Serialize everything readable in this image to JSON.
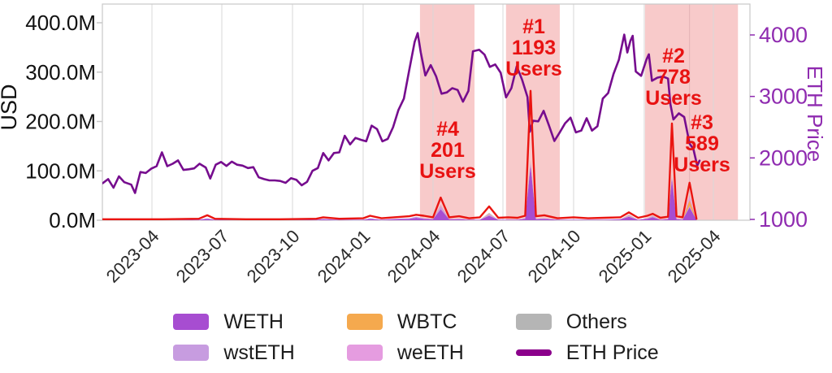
{
  "figure": {
    "left_axis": {
      "label": "USD",
      "tick_labels": [
        "0.0M",
        "100.0M",
        "200.0M",
        "300.0M",
        "400.0M"
      ],
      "tick_values": [
        0,
        100,
        200,
        300,
        400
      ]
    },
    "right_axis": {
      "label": "ETH Price",
      "tick_labels": [
        "1000",
        "2000",
        "3000",
        "4000"
      ],
      "tick_values": [
        1000,
        2000,
        3000,
        4000
      ]
    },
    "x_axis": {
      "tick_labels": [
        "2023-04",
        "2023-07",
        "2023-10",
        "2024-01",
        "2024-04",
        "2024-07",
        "2024-10",
        "2025-01",
        "2025-04"
      ]
    },
    "annotations": [
      {
        "rank": "#1",
        "users": "1193",
        "text": "#1\n1193\nUsers"
      },
      {
        "rank": "#2",
        "users": "778",
        "text": "#2\n778\nUsers"
      },
      {
        "rank": "#3",
        "users": "589",
        "text": "#3\n589\nUsers"
      },
      {
        "rank": "#4",
        "users": "201",
        "text": "#4\n201\nUsers"
      }
    ],
    "legend": [
      {
        "label": "WETH",
        "color": "#a74dd1",
        "type": "patch"
      },
      {
        "label": "wstETH",
        "color": "#c79ce0",
        "type": "patch"
      },
      {
        "label": "WBTC",
        "color": "#f5a94e",
        "type": "patch"
      },
      {
        "label": "weETH",
        "color": "#e59ce0",
        "type": "patch"
      },
      {
        "label": "Others",
        "color": "#b5b5b5",
        "type": "patch"
      },
      {
        "label": "ETH Price",
        "color": "#8b008b",
        "type": "line"
      }
    ],
    "colors": {
      "annotation_red": "#e81212",
      "region_pink": "#f8caca",
      "region_seam": "#e2b2b4",
      "total_line": "#ea1410",
      "eth_line": "#760d8e",
      "grid": "#d8d8d8",
      "axis_border": "#c9c9c9",
      "right_axis_text": "#8f2bb0",
      "left_axis_text": "#111111",
      "x_tick_text": "#2a2a2a"
    }
  },
  "chart_data": {
    "type": "area",
    "title": "",
    "left_axis": {
      "label": "USD",
      "units": "millions USD",
      "range": [
        0,
        438
      ]
    },
    "right_axis": {
      "label": "ETH Price",
      "range": [
        1000,
        4500
      ]
    },
    "x_ticks": [
      "2023-04",
      "2023-07",
      "2023-10",
      "2024-01",
      "2024-04",
      "2024-07",
      "2024-10",
      "2025-01",
      "2025-04"
    ],
    "grid": "vertical-only",
    "legend_position": "bottom-center",
    "highlight_regions": [
      {
        "rank": "#4",
        "users": 201,
        "start": "2024-03-15",
        "end": "2024-05-25"
      },
      {
        "rank": "#1",
        "users": 1193,
        "start": "2024-07-05",
        "end": "2024-09-13"
      },
      {
        "rank": "#2",
        "users": 778,
        "start": "2025-01-02",
        "end": "2025-03-01"
      },
      {
        "rank": "#3",
        "users": 589,
        "start": "2025-03-01",
        "end": "2025-05-03"
      }
    ],
    "eth_price": [
      [
        "2023-01-27",
        1590
      ],
      [
        "2023-02-03",
        1655
      ],
      [
        "2023-02-10",
        1515
      ],
      [
        "2023-02-17",
        1700
      ],
      [
        "2023-02-24",
        1605
      ],
      [
        "2023-03-05",
        1565
      ],
      [
        "2023-03-10",
        1430
      ],
      [
        "2023-03-17",
        1770
      ],
      [
        "2023-03-24",
        1755
      ],
      [
        "2023-03-31",
        1825
      ],
      [
        "2023-04-07",
        1865
      ],
      [
        "2023-04-14",
        2090
      ],
      [
        "2023-04-21",
        1865
      ],
      [
        "2023-04-28",
        1905
      ],
      [
        "2023-05-05",
        1960
      ],
      [
        "2023-05-12",
        1805
      ],
      [
        "2023-05-19",
        1815
      ],
      [
        "2023-05-26",
        1830
      ],
      [
        "2023-06-02",
        1905
      ],
      [
        "2023-06-10",
        1845
      ],
      [
        "2023-06-16",
        1665
      ],
      [
        "2023-06-23",
        1890
      ],
      [
        "2023-06-30",
        1935
      ],
      [
        "2023-07-07",
        1870
      ],
      [
        "2023-07-14",
        1940
      ],
      [
        "2023-07-21",
        1890
      ],
      [
        "2023-07-28",
        1875
      ],
      [
        "2023-08-04",
        1835
      ],
      [
        "2023-08-11",
        1850
      ],
      [
        "2023-08-18",
        1685
      ],
      [
        "2023-08-25",
        1655
      ],
      [
        "2023-09-01",
        1635
      ],
      [
        "2023-09-08",
        1635
      ],
      [
        "2023-09-15",
        1625
      ],
      [
        "2023-09-22",
        1595
      ],
      [
        "2023-09-29",
        1670
      ],
      [
        "2023-10-06",
        1645
      ],
      [
        "2023-10-13",
        1555
      ],
      [
        "2023-10-20",
        1610
      ],
      [
        "2023-10-27",
        1790
      ],
      [
        "2023-11-03",
        1835
      ],
      [
        "2023-11-10",
        2080
      ],
      [
        "2023-11-17",
        1960
      ],
      [
        "2023-11-24",
        2080
      ],
      [
        "2023-12-01",
        2090
      ],
      [
        "2023-12-08",
        2360
      ],
      [
        "2023-12-15",
        2220
      ],
      [
        "2023-12-22",
        2325
      ],
      [
        "2023-12-29",
        2295
      ],
      [
        "2024-01-05",
        2270
      ],
      [
        "2024-01-12",
        2525
      ],
      [
        "2024-01-19",
        2470
      ],
      [
        "2024-01-26",
        2270
      ],
      [
        "2024-02-02",
        2310
      ],
      [
        "2024-02-09",
        2500
      ],
      [
        "2024-02-16",
        2780
      ],
      [
        "2024-02-23",
        2965
      ],
      [
        "2024-03-01",
        3430
      ],
      [
        "2024-03-08",
        3885
      ],
      [
        "2024-03-12",
        4030
      ],
      [
        "2024-03-16",
        3720
      ],
      [
        "2024-03-22",
        3340
      ],
      [
        "2024-03-29",
        3510
      ],
      [
        "2024-04-05",
        3325
      ],
      [
        "2024-04-12",
        3045
      ],
      [
        "2024-04-19",
        3065
      ],
      [
        "2024-04-26",
        3135
      ],
      [
        "2024-05-03",
        3105
      ],
      [
        "2024-05-10",
        2915
      ],
      [
        "2024-05-17",
        3090
      ],
      [
        "2024-05-23",
        3735
      ],
      [
        "2024-05-31",
        3760
      ],
      [
        "2024-06-07",
        3680
      ],
      [
        "2024-06-14",
        3480
      ],
      [
        "2024-06-21",
        3520
      ],
      [
        "2024-06-28",
        3385
      ],
      [
        "2024-07-05",
        2985
      ],
      [
        "2024-07-12",
        3135
      ],
      [
        "2024-07-19",
        3490
      ],
      [
        "2024-07-26",
        3270
      ],
      [
        "2024-08-02",
        2990
      ],
      [
        "2024-08-05",
        2425
      ],
      [
        "2024-08-09",
        2605
      ],
      [
        "2024-08-16",
        2595
      ],
      [
        "2024-08-23",
        2765
      ],
      [
        "2024-08-30",
        2525
      ],
      [
        "2024-09-06",
        2275
      ],
      [
        "2024-09-13",
        2415
      ],
      [
        "2024-09-20",
        2565
      ],
      [
        "2024-09-27",
        2655
      ],
      [
        "2024-10-04",
        2415
      ],
      [
        "2024-10-11",
        2445
      ],
      [
        "2024-10-18",
        2645
      ],
      [
        "2024-10-25",
        2445
      ],
      [
        "2024-11-01",
        2515
      ],
      [
        "2024-11-08",
        2965
      ],
      [
        "2024-11-15",
        3055
      ],
      [
        "2024-11-22",
        3365
      ],
      [
        "2024-11-29",
        3595
      ],
      [
        "2024-12-06",
        4005
      ],
      [
        "2024-12-10",
        3715
      ],
      [
        "2024-12-14",
        3905
      ],
      [
        "2024-12-17",
        3985
      ],
      [
        "2024-12-21",
        3405
      ],
      [
        "2024-12-28",
        3335
      ],
      [
        "2025-01-04",
        3605
      ],
      [
        "2025-01-07",
        3685
      ],
      [
        "2025-01-11",
        3255
      ],
      [
        "2025-01-18",
        3305
      ],
      [
        "2025-01-25",
        3325
      ],
      [
        "2025-02-01",
        3290
      ],
      [
        "2025-02-04",
        2875
      ],
      [
        "2025-02-08",
        2625
      ],
      [
        "2025-02-15",
        2725
      ],
      [
        "2025-02-22",
        2665
      ],
      [
        "2025-03-01",
        2235
      ],
      [
        "2025-03-06",
        2145
      ],
      [
        "2025-03-11",
        1875
      ],
      [
        "2025-03-14",
        1955
      ]
    ],
    "volume_dates": [
      "2023-01-27",
      "2023-03-01",
      "2023-04-15",
      "2023-06-01",
      "2023-06-12",
      "2023-06-22",
      "2023-08-01",
      "2023-09-15",
      "2023-11-01",
      "2023-11-10",
      "2023-12-01",
      "2024-01-01",
      "2024-01-10",
      "2024-01-25",
      "2024-02-10",
      "2024-03-01",
      "2024-03-10",
      "2024-03-20",
      "2024-04-01",
      "2024-04-11",
      "2024-04-22",
      "2024-05-05",
      "2024-05-18",
      "2024-06-01",
      "2024-06-13",
      "2024-06-25",
      "2024-07-08",
      "2024-07-20",
      "2024-07-30",
      "2024-08-06",
      "2024-08-13",
      "2024-08-24",
      "2024-09-10",
      "2024-10-01",
      "2024-10-20",
      "2024-11-10",
      "2024-12-01",
      "2024-12-12",
      "2024-12-24",
      "2025-01-05",
      "2025-01-12",
      "2025-01-22",
      "2025-02-01",
      "2025-02-06",
      "2025-02-12",
      "2025-02-20",
      "2025-03-01",
      "2025-03-10"
    ],
    "volume_total_musd": [
      2,
      2,
      2,
      3,
      10,
      3,
      2,
      2,
      3,
      6,
      3,
      4,
      9,
      4,
      6,
      8,
      11,
      9,
      6,
      46,
      6,
      8,
      4,
      6,
      28,
      5,
      6,
      5,
      9,
      262,
      8,
      10,
      4,
      6,
      4,
      5,
      6,
      16,
      5,
      9,
      13,
      5,
      7,
      196,
      8,
      6,
      76,
      3
    ],
    "volume_series": [
      {
        "name": "WETH",
        "color": "#a74dd1",
        "values": [
          0,
          0,
          0,
          1,
          3,
          1,
          0,
          0,
          1,
          2,
          1,
          1,
          3,
          1,
          2,
          3,
          5,
          3,
          2,
          22,
          2,
          2,
          1,
          1,
          9,
          1,
          1,
          1,
          3,
          112,
          2,
          3,
          1,
          1,
          1,
          1,
          2,
          7,
          1,
          3,
          6,
          1,
          2,
          85,
          2,
          1,
          26,
          1
        ]
      },
      {
        "name": "wstETH",
        "color": "#c79ce0",
        "values": [
          0,
          0,
          0,
          0,
          1,
          0,
          0,
          0,
          0,
          1,
          0,
          0,
          1,
          0,
          1,
          1,
          2,
          1,
          0,
          6,
          0,
          1,
          0,
          0,
          3,
          0,
          0,
          0,
          1,
          6,
          1,
          1,
          0,
          0,
          0,
          0,
          0,
          2,
          0,
          1,
          2,
          0,
          1,
          4,
          1,
          1,
          3,
          0
        ]
      },
      {
        "name": "WBTC",
        "color": "#f5a94e",
        "values": [
          0,
          0,
          0,
          0,
          0,
          0,
          0,
          0,
          0,
          0,
          0,
          0,
          0,
          0,
          0,
          0,
          0,
          0,
          0,
          1,
          0,
          0,
          0,
          0,
          1,
          0,
          0,
          0,
          0,
          1,
          0,
          0,
          0,
          0,
          0,
          0,
          0,
          1,
          0,
          0,
          0,
          0,
          0,
          1,
          0,
          0,
          12,
          0
        ]
      },
      {
        "name": "weETH",
        "color": "#e59ce0",
        "values": [
          0,
          0,
          0,
          0,
          0,
          0,
          0,
          0,
          0,
          0,
          0,
          0,
          0,
          0,
          0,
          0,
          0,
          0,
          0,
          2,
          0,
          0,
          0,
          0,
          1,
          0,
          0,
          0,
          0,
          1,
          0,
          0,
          0,
          0,
          0,
          0,
          0,
          1,
          0,
          0,
          0,
          0,
          0,
          2,
          0,
          0,
          8,
          0
        ]
      },
      {
        "name": "Others",
        "color": "#b5b5b5",
        "values": [
          0,
          0,
          0,
          0,
          0,
          0,
          0,
          0,
          0,
          0,
          0,
          0,
          0,
          0,
          0,
          0,
          0,
          0,
          0,
          1,
          0,
          0,
          0,
          0,
          1,
          0,
          0,
          0,
          0,
          2,
          0,
          0,
          0,
          0,
          0,
          0,
          0,
          1,
          0,
          0,
          1,
          0,
          0,
          2,
          0,
          0,
          2,
          0
        ]
      }
    ]
  }
}
